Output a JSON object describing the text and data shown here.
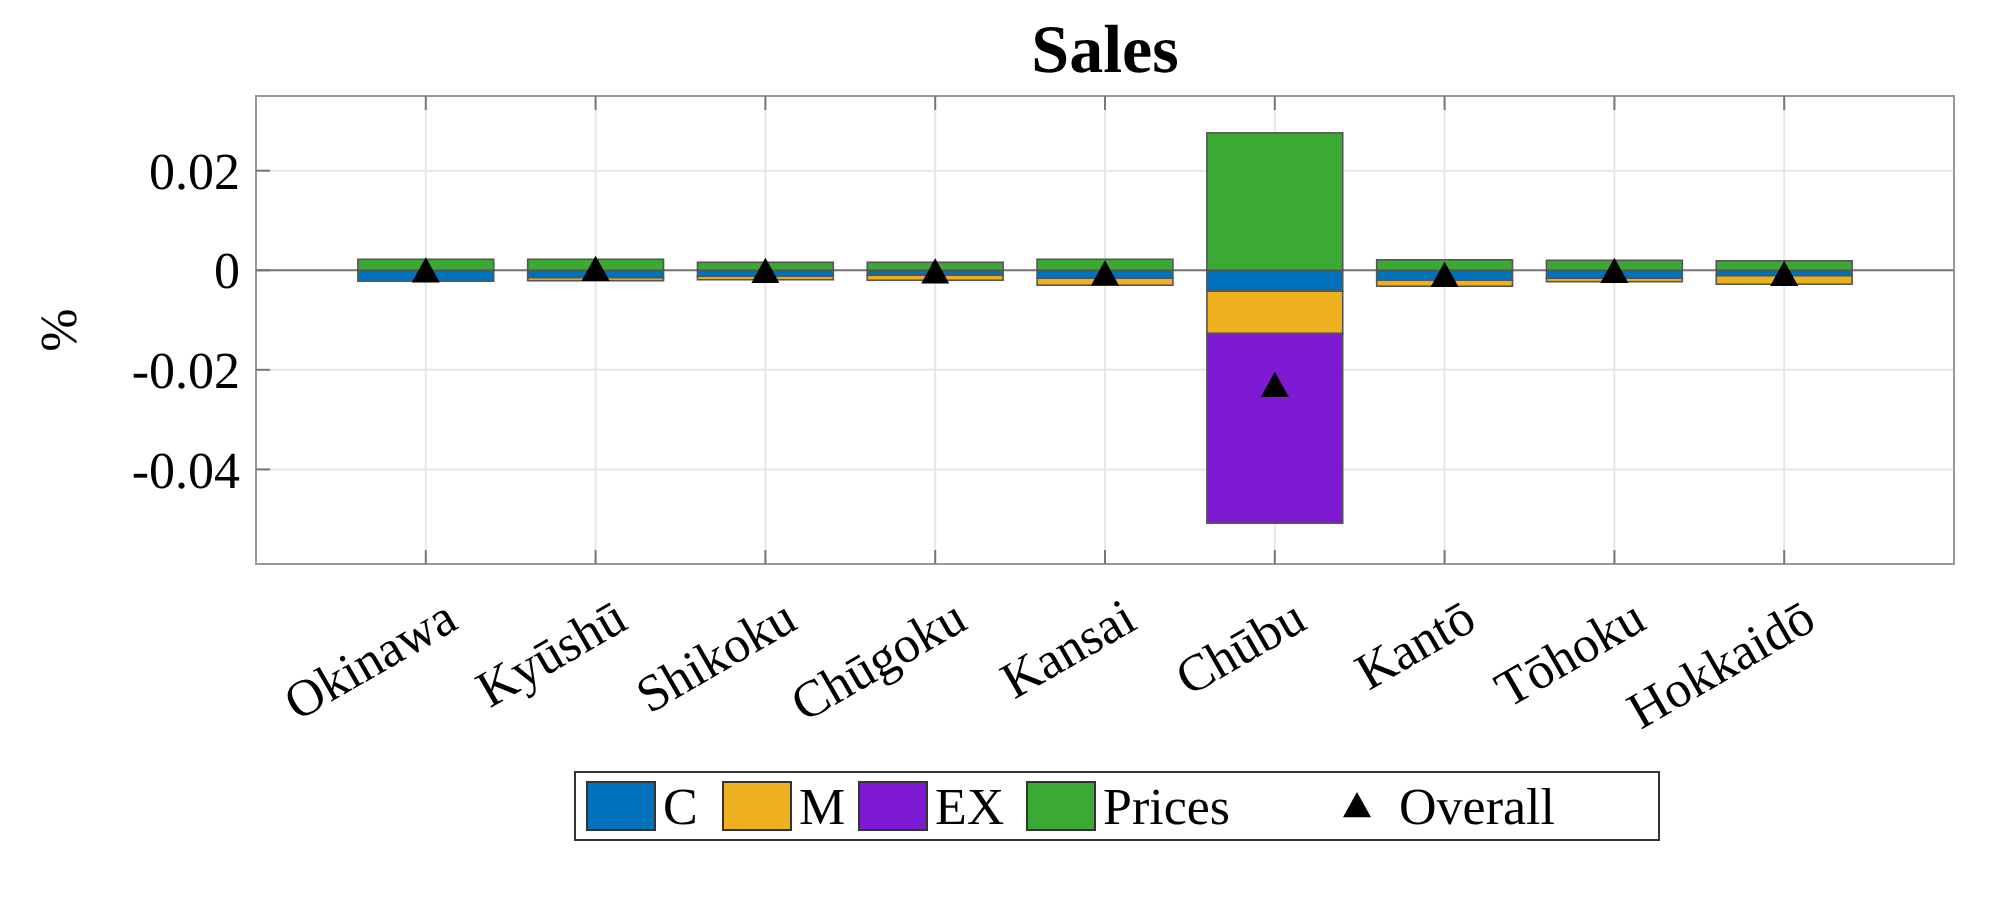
{
  "chart_data": {
    "type": "bar",
    "title": "Sales",
    "ylabel": "%",
    "stacked": true,
    "categories": [
      "Okinawa",
      "Kyūshū",
      "Shikoku",
      "Chūgoku",
      "Kansai",
      "Chūbu",
      "Kantō",
      "Tōhoku",
      "Hokkaidō"
    ],
    "series": [
      {
        "name": "C",
        "color": "#0072bd",
        "values": [
          -0.0022,
          -0.0015,
          -0.0012,
          -0.001,
          -0.0016,
          -0.0042,
          -0.002,
          -0.0016,
          -0.0011
        ]
      },
      {
        "name": "M",
        "color": "#edb120",
        "values": [
          null,
          -0.0006,
          -0.0007,
          -0.001,
          -0.0014,
          -0.0085,
          -0.0012,
          -0.0007,
          -0.0017
        ]
      },
      {
        "name": "EX",
        "color": "#7e1ad2",
        "values": [
          0,
          0,
          0,
          0,
          0,
          -0.0381,
          0,
          0,
          0
        ]
      },
      {
        "name": "Prices",
        "color": "#3aaa35",
        "values": [
          0.0022,
          0.0022,
          0.0016,
          0.0016,
          0.0022,
          0.0276,
          0.0021,
          0.002,
          0.0019
        ]
      },
      {
        "name": "Overall",
        "type": "scatter",
        "marker": "triangle",
        "color": "#000000",
        "x": [
          "Okinawa",
          "Kyūshū",
          "Shikoku",
          "Chūgoku",
          "Kansai",
          "Chūbu",
          "Kantō",
          "Tōhoku",
          "Hokkaidō"
        ],
        "values": [
          -0.0002,
          0.0001,
          -0.0003,
          -0.0004,
          -0.0008,
          -0.0232,
          -0.0011,
          -0.0003,
          -0.0009
        ]
      }
    ],
    "ylim": [
      -0.059,
      0.035
    ],
    "yticks": [
      {
        "value": 0.02,
        "label": "0.02"
      },
      0,
      {
        "value": -0.02,
        "label": "-0.02"
      },
      {
        "value": -0.04,
        "label": "-0.04"
      }
    ],
    "grid": true,
    "legend": "bottom"
  }
}
